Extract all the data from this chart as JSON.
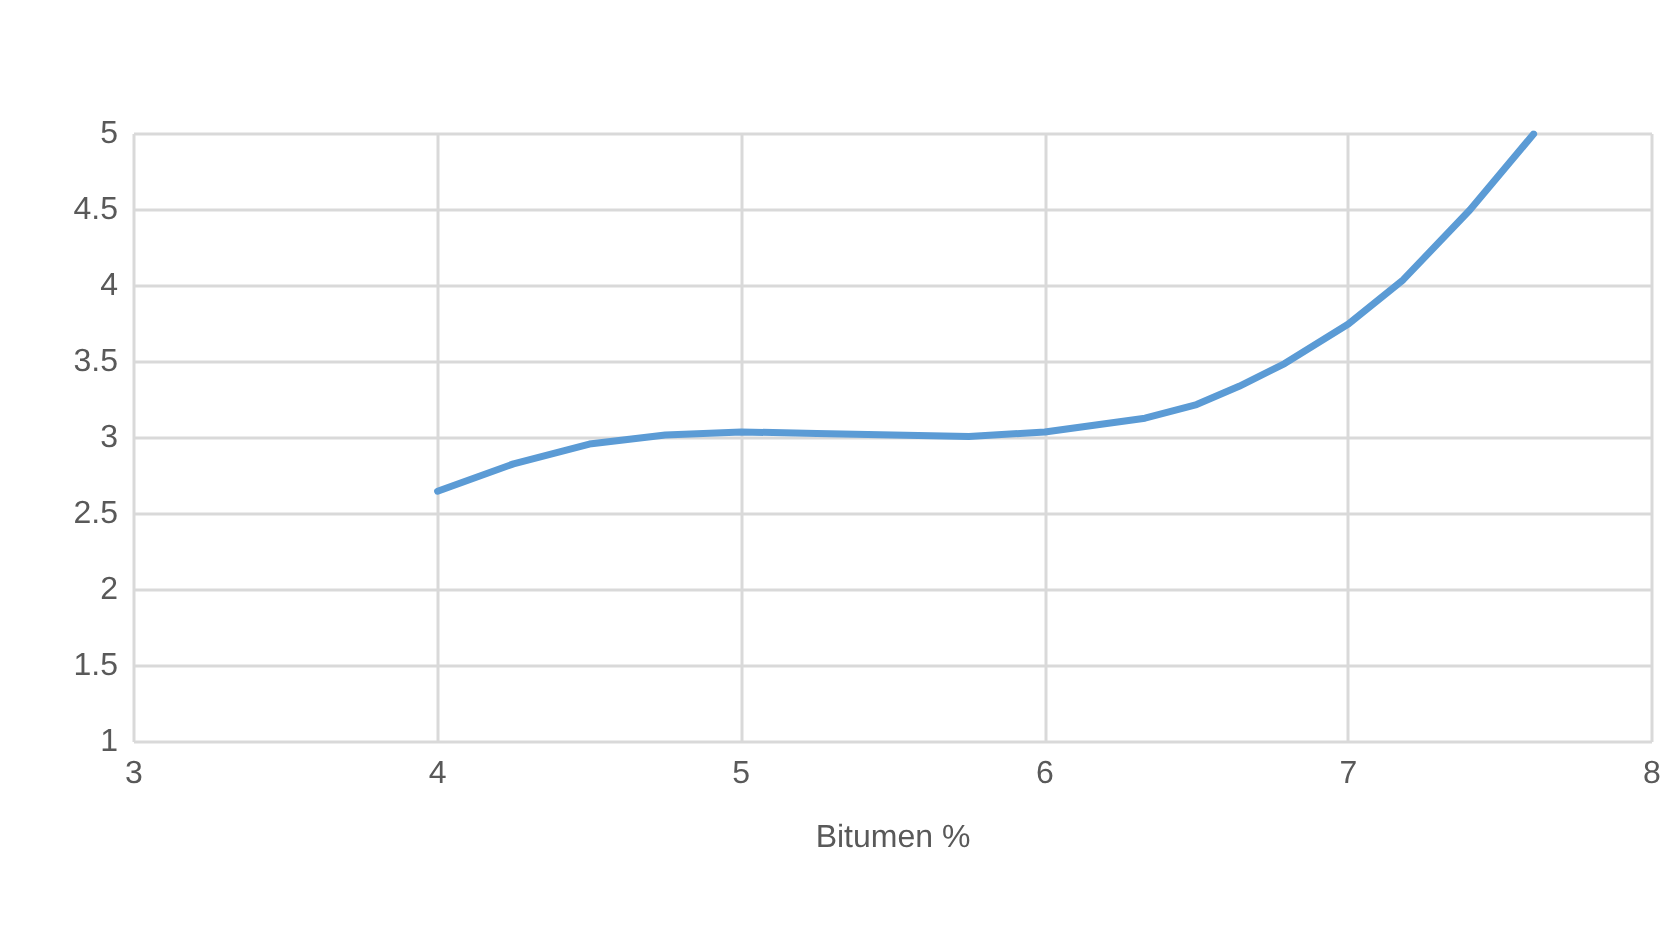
{
  "chart_data": {
    "type": "line",
    "xlabel": "Bitumen %",
    "x": [
      4,
      4.25,
      4.5,
      4.75,
      5,
      5.25,
      5.5,
      5.75,
      6,
      6.33,
      6.5,
      6.64,
      6.79,
      7,
      7.18,
      7.4,
      7.61
    ],
    "series": [
      {
        "color": "#5b9bd5",
        "values": [
          2.65,
          2.83,
          2.96,
          3.02,
          3.04,
          3.03,
          3.02,
          3.01,
          3.04,
          3.13,
          3.22,
          3.34,
          3.49,
          3.75,
          4.04,
          4.5,
          5
        ]
      }
    ],
    "xlim": [
      3,
      8
    ],
    "xticks": [
      3,
      4,
      5,
      6,
      7,
      8
    ],
    "ylim": [
      1,
      5
    ],
    "yticks": [
      1,
      1.5,
      2,
      2.5,
      3,
      3.5,
      4,
      4.5,
      5
    ],
    "grid": true,
    "marker": "none",
    "line_style": "solid"
  }
}
